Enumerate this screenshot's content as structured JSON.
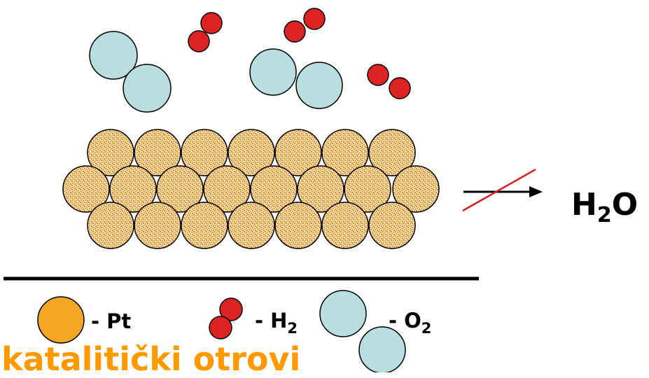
{
  "product": {
    "main": "H",
    "sub": "2",
    "tail": "O"
  },
  "legend": {
    "pt": {
      "prefix": "- ",
      "main": "Pt"
    },
    "h2": {
      "prefix": "- ",
      "main": "H",
      "sub": "2"
    },
    "o2": {
      "prefix": "- ",
      "main": "O",
      "sub": "2"
    }
  },
  "caption": "katalitički otrovi",
  "colors": {
    "pt_fill": "#f5a623",
    "pt_speckle": "#e08a1a",
    "h2_fill": "#dd2222",
    "o2_fill": "#b8dee0",
    "arrow": "#000000",
    "strike": "#d42020",
    "caption": "#ff9900"
  }
}
